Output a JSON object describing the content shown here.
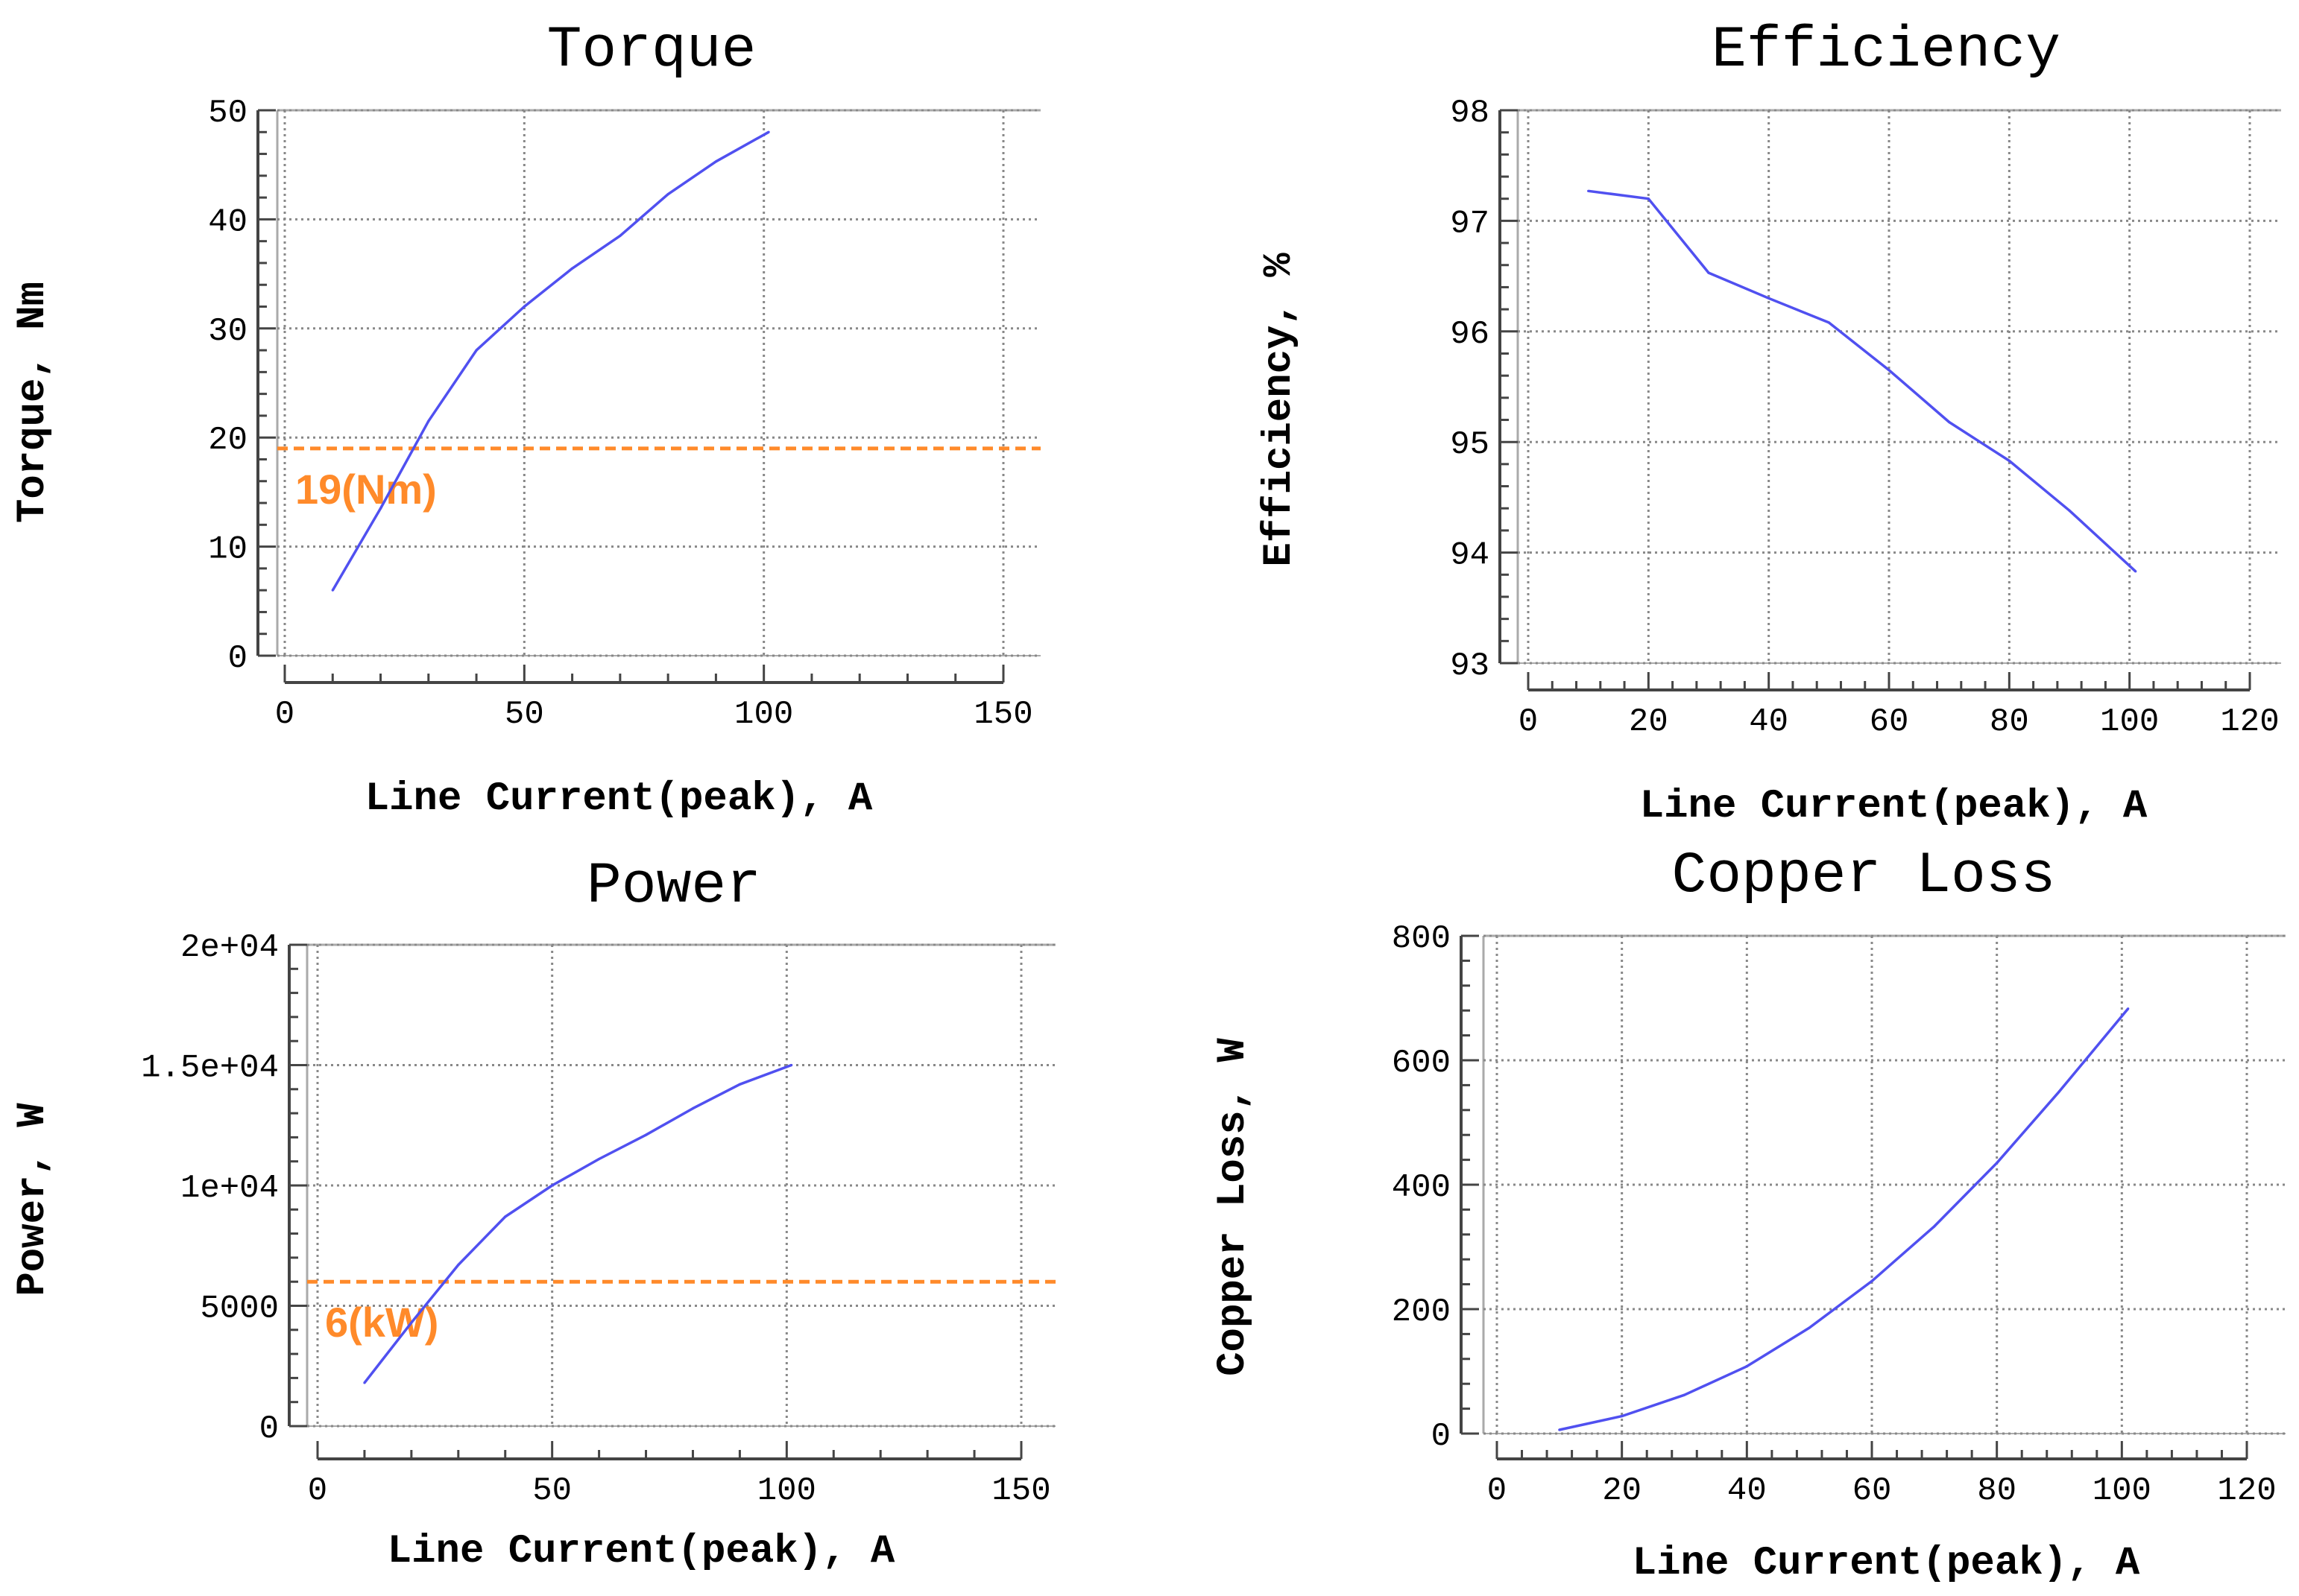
{
  "colors": {
    "series": "#5050f0",
    "reference": "#ff8a2a",
    "grid": "#888888",
    "frame": "#aaaaaa",
    "axis": "#444444"
  },
  "chart_data": [
    {
      "type": "line",
      "title": "Torque",
      "xlabel": "Line Current(peak), A",
      "ylabel": "Torque, Nm",
      "xlim": [
        0,
        150
      ],
      "ylim": [
        0,
        50
      ],
      "xticks": [
        0,
        50,
        100,
        150
      ],
      "yticks": [
        0,
        10,
        20,
        30,
        40,
        50
      ],
      "xtick_labels": [
        "0",
        "50",
        "100",
        "150"
      ],
      "ytick_labels": [
        "0",
        "10",
        "20",
        "30",
        "40",
        "50"
      ],
      "grid": true,
      "series": [
        {
          "name": "Torque",
          "x": [
            10,
            20,
            30,
            40,
            50,
            60,
            70,
            80,
            90,
            101
          ],
          "y": [
            6,
            13.5,
            21.5,
            28,
            32,
            35.5,
            38.5,
            42.3,
            45.3,
            48
          ]
        }
      ],
      "reference_line": {
        "value": 19,
        "label": "19(Nm)"
      }
    },
    {
      "type": "line",
      "title": "Efficiency",
      "xlabel": "Line Current(peak), A",
      "ylabel": "Efficiency, %",
      "xlim": [
        0,
        120
      ],
      "ylim": [
        93,
        98
      ],
      "xticks": [
        0,
        20,
        40,
        60,
        80,
        100,
        120
      ],
      "yticks": [
        93,
        94,
        95,
        96,
        97,
        98
      ],
      "xtick_labels": [
        "0",
        "20",
        "40",
        "60",
        "80",
        "100",
        "120"
      ],
      "ytick_labels": [
        "93",
        "94",
        "95",
        "96",
        "97",
        "98"
      ],
      "grid": true,
      "series": [
        {
          "name": "Efficiency",
          "x": [
            10,
            20,
            30,
            40,
            50,
            60,
            70,
            80,
            90,
            101
          ],
          "y": [
            97.27,
            97.2,
            96.53,
            96.3,
            96.08,
            95.65,
            95.18,
            94.83,
            94.38,
            93.83
          ]
        }
      ]
    },
    {
      "type": "line",
      "title": "Power",
      "xlabel": "Line Current(peak), A",
      "ylabel": "Power, W",
      "xlim": [
        0,
        150
      ],
      "ylim": [
        0,
        20000
      ],
      "xticks": [
        0,
        50,
        100,
        150
      ],
      "yticks": [
        0,
        5000,
        10000,
        15000,
        20000
      ],
      "xtick_labels": [
        "0",
        "50",
        "100",
        "150"
      ],
      "ytick_labels": [
        "0",
        "5000",
        "1e+04",
        "1.5e+04",
        "2e+04"
      ],
      "grid": true,
      "series": [
        {
          "name": "Power",
          "x": [
            10,
            20,
            30,
            40,
            50,
            60,
            70,
            80,
            90,
            101
          ],
          "y": [
            1800,
            4300,
            6700,
            8700,
            10000,
            11100,
            12100,
            13200,
            14200,
            15000
          ]
        }
      ],
      "reference_line": {
        "value": 6000,
        "label": "6(kW)"
      }
    },
    {
      "type": "line",
      "title": "Copper Loss",
      "xlabel": "Line Current(peak), A",
      "ylabel": "Copper Loss, W",
      "xlim": [
        0,
        120
      ],
      "ylim": [
        0,
        800
      ],
      "xticks": [
        0,
        20,
        40,
        60,
        80,
        100,
        120
      ],
      "yticks": [
        0,
        200,
        400,
        600,
        800
      ],
      "xtick_labels": [
        "0",
        "20",
        "40",
        "60",
        "80",
        "100",
        "120"
      ],
      "ytick_labels": [
        "0",
        "200",
        "400",
        "600",
        "800"
      ],
      "grid": true,
      "series": [
        {
          "name": "Copper Loss",
          "x": [
            10,
            20,
            30,
            40,
            50,
            60,
            70,
            80,
            90,
            101
          ],
          "y": [
            6,
            28,
            62,
            108,
            170,
            245,
            333,
            435,
            550,
            683
          ]
        }
      ]
    }
  ]
}
